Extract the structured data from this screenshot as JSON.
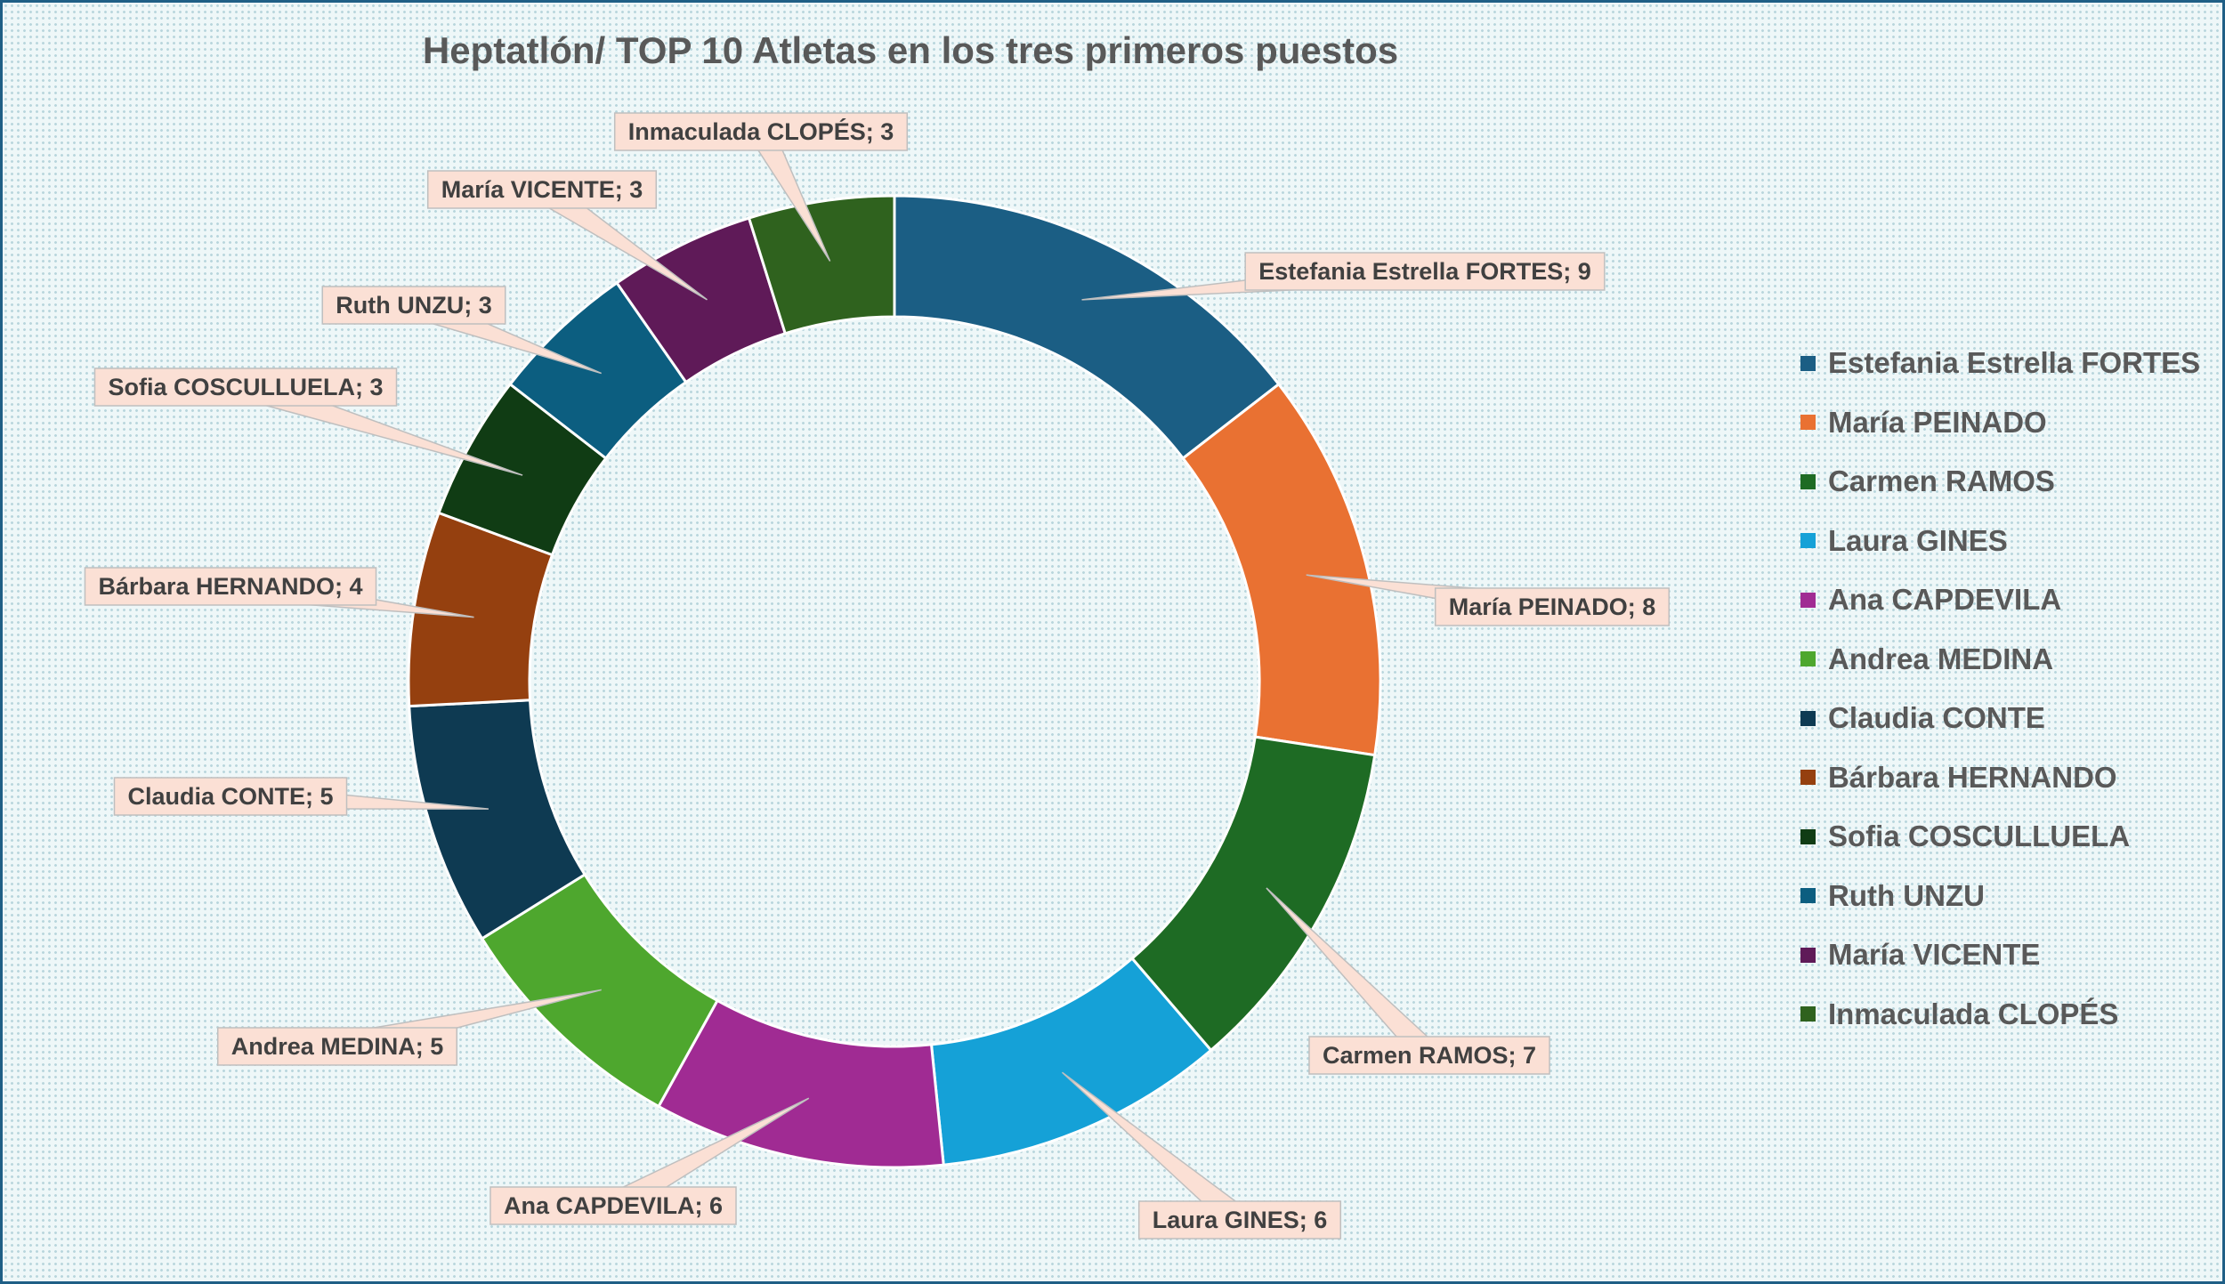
{
  "chart_data": {
    "type": "doughnut",
    "title": "Heptatlón/ TOP 10 Atletas en los tres primeros puestos",
    "legend_position": "right",
    "data_label_separator": "; ",
    "series": [
      {
        "name": "Estefania Estrella FORTES",
        "value": 9,
        "color": "#1b5e84"
      },
      {
        "name": "María PEINADO",
        "value": 8,
        "color": "#e97132"
      },
      {
        "name": "Carmen RAMOS",
        "value": 7,
        "color": "#1e6b24"
      },
      {
        "name": "Laura GINES",
        "value": 6,
        "color": "#15a1d7"
      },
      {
        "name": "Ana CAPDEVILA",
        "value": 6,
        "color": "#a02b93"
      },
      {
        "name": "Andrea MEDINA",
        "value": 5,
        "color": "#4ea72e"
      },
      {
        "name": "Claudia CONTE",
        "value": 5,
        "color": "#0e3a52"
      },
      {
        "name": "Bárbara HERNANDO",
        "value": 4,
        "color": "#95400f"
      },
      {
        "name": "Sofia COSCULLUELA",
        "value": 3,
        "color": "#103c14"
      },
      {
        "name": "Ruth UNZU",
        "value": 3,
        "color": "#0c5e80"
      },
      {
        "name": "María VICENTE",
        "value": 3,
        "color": "#5f1a58"
      },
      {
        "name": "Inmaculada CLOPÉS",
        "value": 3,
        "color": "#2f621e"
      }
    ]
  }
}
